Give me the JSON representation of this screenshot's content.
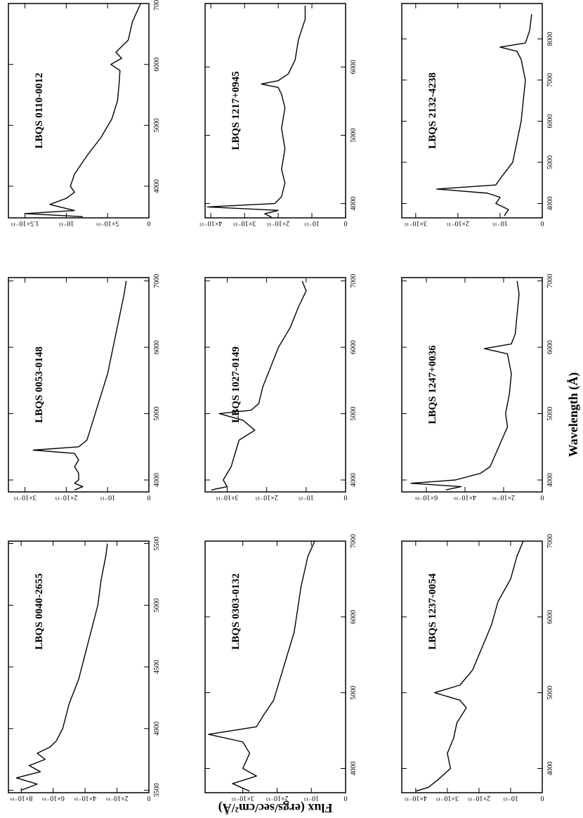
{
  "x_label": "Wavelength (Å)",
  "y_label": "Flux (ergs/sec/cm²/Å)",
  "chart_data": [
    {
      "type": "line",
      "title": "LBQS 0040-2655",
      "color": "#000000",
      "x": [
        3500,
        3550,
        3600,
        3650,
        3700,
        3750,
        3800,
        3850,
        3900,
        4000,
        4100,
        4200,
        4400,
        4600,
        4800,
        5000,
        5200,
        5400,
        5500
      ],
      "values": [
        8e-16,
        7e-16,
        8.3e-16,
        6.8e-16,
        7.5e-16,
        6.5e-16,
        7e-16,
        6.2e-16,
        5.8e-16,
        5.4e-16,
        5.2e-16,
        5e-16,
        4.4e-16,
        4e-16,
        3.6e-16,
        3.2e-16,
        3e-16,
        2.7e-16,
        2.6e-16
      ],
      "xlim": [
        3480,
        5520
      ],
      "xticks": [
        3500,
        4000,
        4500,
        5000,
        5500
      ],
      "ylim": [
        0,
        8.8e-16
      ],
      "yticks": [
        0,
        {
          "value": 2e-16,
          "label": "2×10⁻¹⁶"
        },
        {
          "value": 4e-16,
          "label": "4×10⁻¹⁶"
        },
        {
          "value": 6e-16,
          "label": "6×10⁻¹⁶"
        },
        {
          "value": 8e-16,
          "label": "8×10⁻¹⁶"
        }
      ]
    },
    {
      "type": "line",
      "title": "LBQS 0053-0148",
      "color": "#000000",
      "x": [
        3850,
        3900,
        3950,
        4000,
        4100,
        4200,
        4300,
        4400,
        4450,
        4500,
        4600,
        4800,
        5000,
        5300,
        5600,
        5900,
        6200,
        6500,
        6800,
        7000
      ],
      "values": [
        1.8e-15,
        1.6e-15,
        1.8e-15,
        1.7e-15,
        1.7e-15,
        1.8e-15,
        1.7e-15,
        1.8e-15,
        2.8e-15,
        1.7e-15,
        1.5e-15,
        1.4e-15,
        1.3e-15,
        1.15e-15,
        1e-15,
        9e-16,
        8e-16,
        7e-16,
        6e-16,
        5.5e-16
      ],
      "xlim": [
        3820,
        7050
      ],
      "xticks": [
        4000,
        5000,
        6000,
        7000
      ],
      "ylim": [
        0,
        3.4e-15
      ],
      "yticks": [
        0,
        {
          "value": 1e-15,
          "label": "10⁻¹⁵"
        },
        {
          "value": 2e-15,
          "label": "2×10⁻¹⁵"
        },
        {
          "value": 3e-15,
          "label": "3×10⁻¹⁵"
        }
      ]
    },
    {
      "type": "line",
      "title": "LBQS 0110-0012",
      "color": "#000000",
      "x": [
        3500,
        3550,
        3600,
        3700,
        3800,
        3900,
        4000,
        4200,
        4500,
        4800,
        5100,
        5400,
        5700,
        5900,
        6000,
        6100,
        6200,
        6400,
        6700,
        7000
      ],
      "values": [
        8e-16,
        1.5e-15,
        9e-16,
        1.2e-15,
        1e-15,
        9e-16,
        9.5e-16,
        9e-16,
        7.5e-16,
        5.8e-16,
        4.5e-16,
        3.8e-16,
        3.6e-16,
        3.5e-16,
        4.6e-16,
        3.3e-16,
        4e-16,
        2.5e-16,
        2e-16,
        1e-16
      ],
      "xlim": [
        3480,
        7000
      ],
      "xticks": [
        4000,
        5000,
        6000,
        7000
      ],
      "ylim": [
        0,
        1.7e-15
      ],
      "yticks": [
        0,
        {
          "value": 5e-16,
          "label": "5×10⁻¹⁶"
        },
        {
          "value": 1e-15,
          "label": "10⁻¹⁵"
        },
        {
          "value": 1.5e-15,
          "label": "1.5×10⁻¹⁵"
        }
      ]
    },
    {
      "type": "line",
      "title": "LBQS 0303-0132",
      "color": "#000000",
      "x": [
        3700,
        3800,
        3900,
        4000,
        4100,
        4200,
        4350,
        4450,
        4550,
        4700,
        4900,
        5200,
        5500,
        5800,
        6100,
        6400,
        6600,
        6800,
        7000
      ],
      "values": [
        2.8e-15,
        3.3e-15,
        2.6e-15,
        3e-15,
        2.9e-15,
        2.8e-15,
        3e-15,
        4e-15,
        2.6e-15,
        2.4e-15,
        2.1e-15,
        1.9e-15,
        1.7e-15,
        1.5e-15,
        1.4e-15,
        1.3e-15,
        1.2e-15,
        1.1e-15,
        9e-16
      ],
      "xlim": [
        3680,
        7000
      ],
      "xticks": [
        4000,
        5000,
        6000,
        7000
      ],
      "ylim": [
        0,
        4.1e-15
      ],
      "yticks": [
        0,
        {
          "value": 1e-15,
          "label": "10⁻¹⁵"
        },
        {
          "value": 2e-15,
          "label": "2×10⁻¹⁵"
        },
        {
          "value": 3e-15,
          "label": "3×10⁻¹⁵"
        }
      ]
    },
    {
      "type": "line",
      "title": "LBQS 1027-0149",
      "color": "#000000",
      "x": [
        3850,
        3900,
        4000,
        4200,
        4400,
        4600,
        4750,
        4900,
        5000,
        5050,
        5150,
        5400,
        5700,
        6000,
        6300,
        6600,
        6850,
        7000
      ],
      "values": [
        3.4e-15,
        3e-15,
        3.1e-15,
        2.9e-15,
        2.8e-15,
        2.7e-15,
        2.3e-15,
        2.6e-15,
        3.2e-15,
        2.4e-15,
        2.2e-15,
        2.1e-15,
        1.9e-15,
        1.7e-15,
        1.4e-15,
        1.2e-15,
        1e-15,
        1.1e-15
      ],
      "xlim": [
        3820,
        7050
      ],
      "xticks": [
        4000,
        5000,
        6000,
        7000
      ],
      "ylim": [
        0,
        3.56e-15
      ],
      "yticks": [
        0,
        {
          "value": 1e-15,
          "label": "10⁻¹⁵"
        },
        {
          "value": 2e-15,
          "label": "2×10⁻¹⁵"
        },
        {
          "value": 3e-15,
          "label": "3×10⁻¹⁵"
        }
      ]
    },
    {
      "type": "line",
      "title": "LBQS 1217+0945",
      "color": "#000000",
      "x": [
        3800,
        3850,
        3900,
        3950,
        4000,
        4100,
        4300,
        4500,
        4800,
        5100,
        5400,
        5600,
        5700,
        5750,
        5800,
        5900,
        6100,
        6400,
        6700,
        6900
      ],
      "values": [
        2.2e-15,
        2.4e-15,
        2e-15,
        4.1e-15,
        2.1e-15,
        1.9e-15,
        1.8e-15,
        1.9e-15,
        1.8e-15,
        1.9e-15,
        1.8e-15,
        1.9e-15,
        2e-15,
        2.5e-15,
        2e-15,
        1.7e-15,
        1.5e-15,
        1.4e-15,
        1.2e-15,
        1.2e-15
      ],
      "xlim": [
        3790,
        6930
      ],
      "xticks": [
        4000,
        5000,
        6000
      ],
      "ylim": [
        0,
        4.17e-15
      ],
      "yticks": [
        0,
        {
          "value": 1e-15,
          "label": "10⁻¹⁵"
        },
        {
          "value": 2e-15,
          "label": "2×10⁻¹⁵"
        },
        {
          "value": 3e-15,
          "label": "3×10⁻¹⁵"
        },
        {
          "value": 4e-15,
          "label": "4×10⁻¹⁵"
        }
      ]
    },
    {
      "type": "line",
      "title": "LBQS 1237-0054",
      "color": "#000000",
      "x": [
        3700,
        3750,
        3850,
        4000,
        4200,
        4400,
        4600,
        4800,
        4900,
        5000,
        5100,
        5300,
        5600,
        5900,
        6200,
        6500,
        6800,
        7000
      ],
      "values": [
        4e-15,
        3.6e-15,
        3.3e-15,
        2.9e-15,
        3e-15,
        2.8e-15,
        2.7e-15,
        2.4e-15,
        2.6e-15,
        3.4e-15,
        2.6e-15,
        2.2e-15,
        1.9e-15,
        1.6e-15,
        1.4e-15,
        1e-15,
        8e-16,
        6e-16
      ],
      "xlim": [
        3680,
        7000
      ],
      "xticks": [
        4000,
        5000,
        6000,
        7000
      ],
      "ylim": [
        0,
        4.44e-15
      ],
      "yticks": [
        0,
        {
          "value": 1e-15,
          "label": "10⁻¹⁵"
        },
        {
          "value": 2e-15,
          "label": "2×10⁻¹⁵"
        },
        {
          "value": 3e-15,
          "label": "3×10⁻¹⁵"
        },
        {
          "value": 4e-15,
          "label": "4×10⁻¹⁵"
        }
      ]
    },
    {
      "type": "line",
      "title": "LBQS 1247+0036",
      "color": "#000000",
      "x": [
        3850,
        3900,
        3950,
        4000,
        4100,
        4200,
        4400,
        4600,
        4800,
        5000,
        5300,
        5600,
        5900,
        5980,
        6050,
        6200,
        6500,
        6800,
        7000
      ],
      "values": [
        5e-16,
        4.2e-16,
        6.8e-16,
        4.5e-16,
        3.2e-16,
        2.7e-16,
        2.4e-16,
        2.1e-16,
        1.8e-16,
        1.9e-16,
        1.7e-16,
        1.6e-16,
        1.8e-16,
        3e-16,
        1.6e-16,
        1.4e-16,
        1.3e-16,
        1.2e-16,
        1.3e-16
      ],
      "xlim": [
        3820,
        7050
      ],
      "xticks": [
        4000,
        5000,
        6000,
        7000
      ],
      "ylim": [
        0,
        7.27e-16
      ],
      "yticks": [
        0,
        {
          "value": 2e-16,
          "label": "2×10⁻¹⁶"
        },
        {
          "value": 4e-16,
          "label": "4×10⁻¹⁶"
        },
        {
          "value": 6e-16,
          "label": "6×10⁻¹⁶"
        }
      ]
    },
    {
      "type": "line",
      "title": "LBQS 2132-4238",
      "color": "#000000",
      "x": [
        3700,
        3850,
        4000,
        4150,
        4250,
        4350,
        4450,
        4600,
        5000,
        5500,
        6000,
        6500,
        7000,
        7500,
        7700,
        7800,
        7900,
        8200,
        8600
      ],
      "values": [
        9e-16,
        8e-16,
        1.1e-15,
        1e-15,
        1.3e-15,
        2.5e-15,
        1.1e-15,
        1e-15,
        7e-16,
        6e-16,
        5e-16,
        4.5e-16,
        4e-16,
        5e-16,
        6e-16,
        1e-15,
        4e-16,
        3e-16,
        2.5e-16
      ],
      "xlim": [
        3650,
        8860
      ],
      "xticks": [
        4000,
        5000,
        6000,
        7000,
        8000
      ],
      "ylim": [
        0,
        3.33e-15
      ],
      "yticks": [
        0,
        {
          "value": 1e-15,
          "label": "10⁻¹⁵"
        },
        {
          "value": 2e-15,
          "label": "2×10⁻¹⁵"
        },
        {
          "value": 3e-15,
          "label": "3×10⁻¹⁵"
        }
      ]
    }
  ]
}
